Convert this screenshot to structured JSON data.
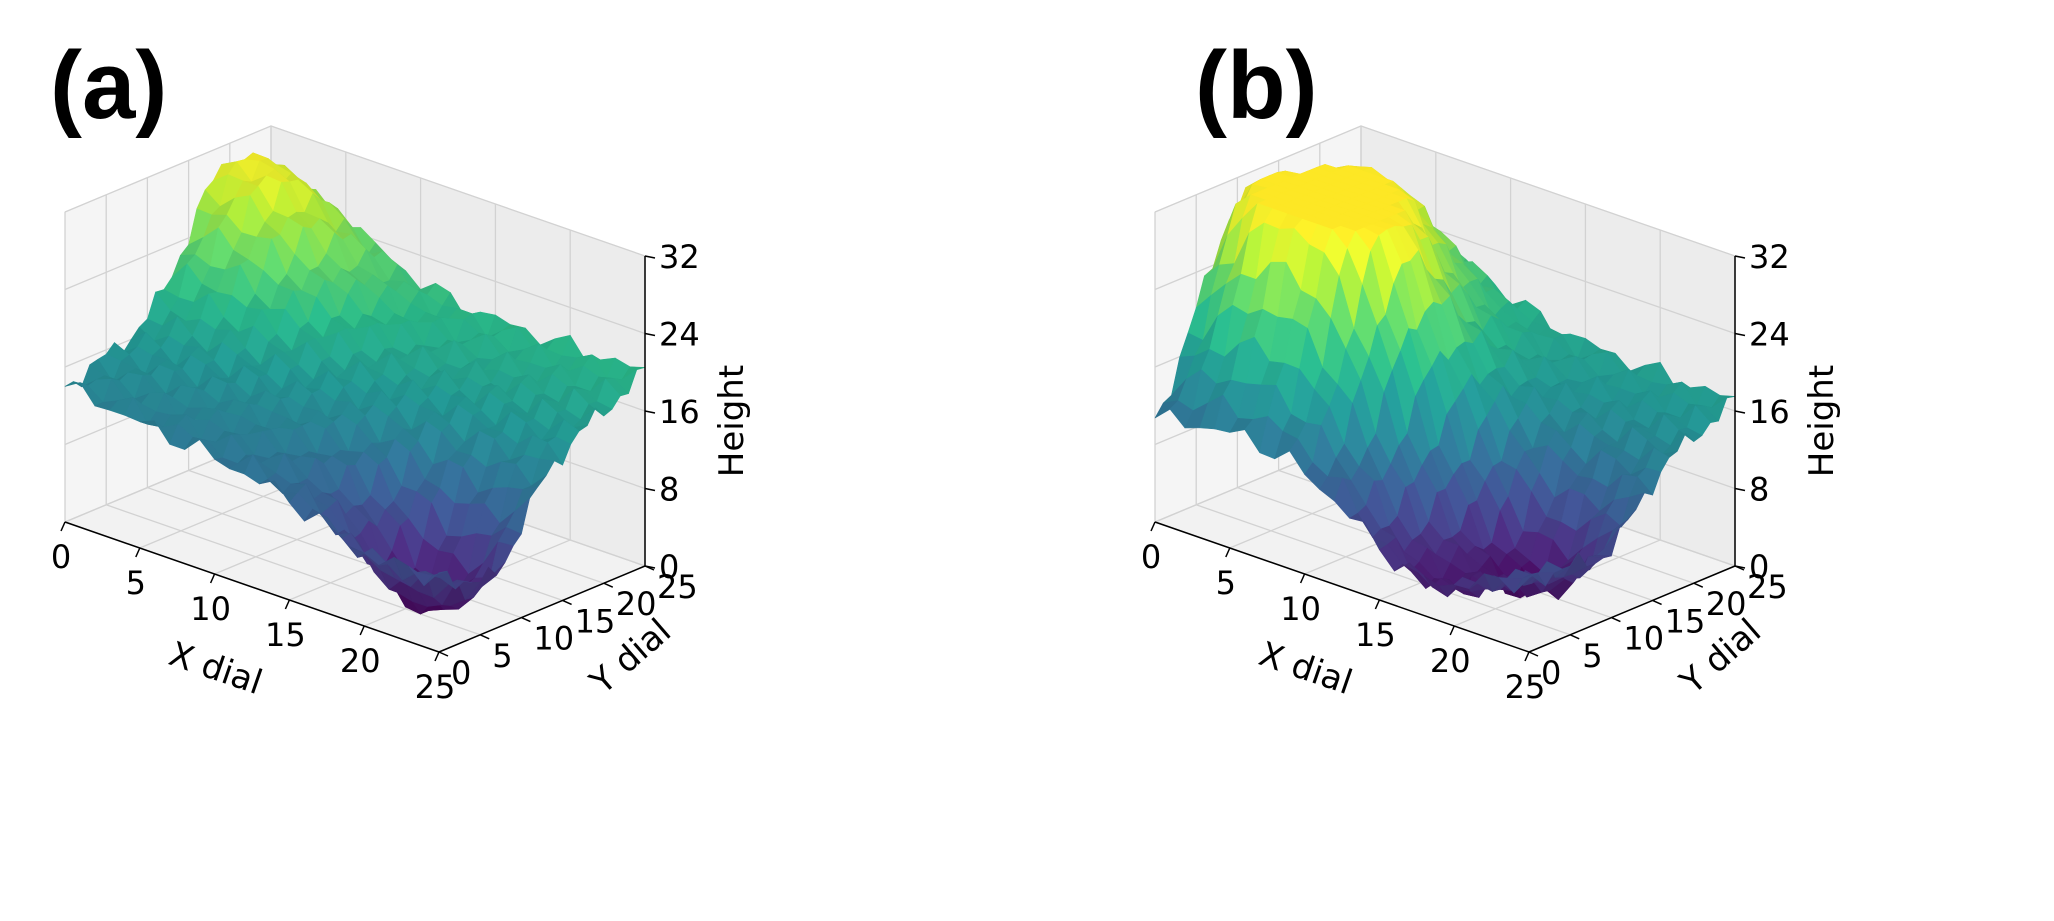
{
  "chart_data": [
    {
      "type": "surface3d",
      "panel_label": "(a)",
      "xlabel": "X dial",
      "ylabel": "Y dial",
      "zlabel": "Height",
      "xlim": [
        0,
        25
      ],
      "ylim": [
        0,
        25
      ],
      "zlim": [
        0,
        32
      ],
      "xticks": [
        "0",
        "5",
        "10",
        "15",
        "20",
        "25"
      ],
      "yticks": [
        "0",
        "5",
        "10",
        "15",
        "20",
        "25"
      ],
      "zticks": [
        "0",
        "8",
        "16",
        "24",
        "32"
      ],
      "colormap": "viridis",
      "grid": true,
      "surface_shape": "single central peak",
      "peaks": [
        {
          "x": 2,
          "y": 20,
          "height": 31
        }
      ],
      "valleys": [
        {
          "x": 21,
          "y": 6,
          "height": 0
        }
      ],
      "corners": [
        {
          "x": 0,
          "y": 0,
          "height": 14
        },
        {
          "x": 25,
          "y": 0,
          "height": 9
        },
        {
          "x": 0,
          "y": 25,
          "height": 20
        },
        {
          "x": 25,
          "y": 25,
          "height": 20
        }
      ]
    },
    {
      "type": "surface3d",
      "panel_label": "(b)",
      "xlabel": "X dial",
      "ylabel": "Y dial",
      "zlabel": "Height",
      "xlim": [
        0,
        25
      ],
      "ylim": [
        0,
        25
      ],
      "zlim": [
        0,
        32
      ],
      "xticks": [
        "0",
        "5",
        "10",
        "15",
        "20",
        "25"
      ],
      "yticks": [
        "0",
        "5",
        "10",
        "15",
        "20",
        "25"
      ],
      "zticks": [
        "0",
        "8",
        "16",
        "24",
        "32"
      ],
      "colormap": "viridis",
      "grid": true,
      "surface_shape": "multiple ridges and peaks",
      "peaks": [
        {
          "x": 4,
          "y": 19,
          "height": 29
        },
        {
          "x": 8,
          "y": 10,
          "height": 30
        },
        {
          "x": 3,
          "y": 10,
          "height": 26
        }
      ],
      "valleys": [
        {
          "x": 20,
          "y": 9,
          "height": 0
        },
        {
          "x": 18,
          "y": 3,
          "height": 2
        }
      ],
      "corners": [
        {
          "x": 0,
          "y": 0,
          "height": 9
        },
        {
          "x": 25,
          "y": 0,
          "height": 8
        },
        {
          "x": 0,
          "y": 25,
          "height": 18
        },
        {
          "x": 25,
          "y": 25,
          "height": 17
        }
      ]
    }
  ]
}
